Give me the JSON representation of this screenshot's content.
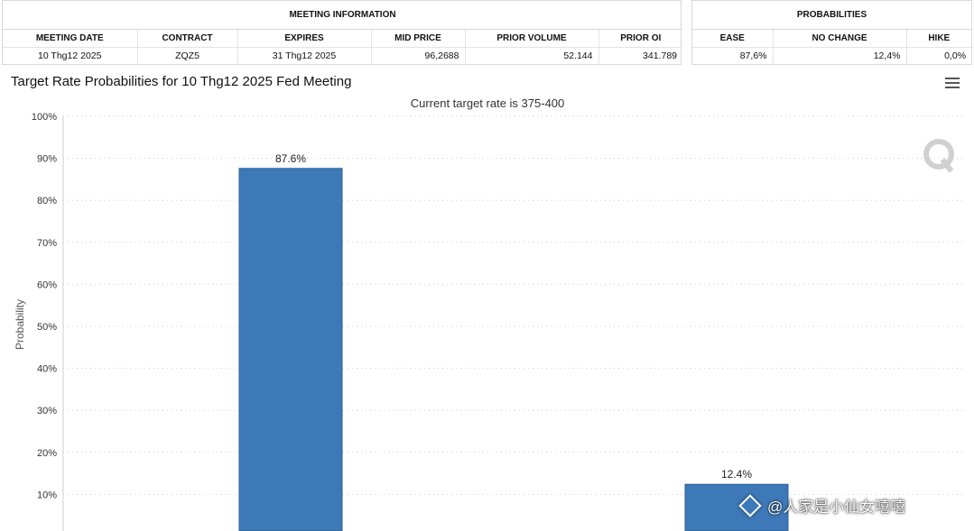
{
  "meeting_info": {
    "title": "MEETING INFORMATION",
    "headers": [
      "MEETING DATE",
      "CONTRACT",
      "EXPIRES",
      "MID PRICE",
      "PRIOR VOLUME",
      "PRIOR OI"
    ],
    "row": [
      "10 Thg12 2025",
      "ZQZ5",
      "31 Thg12 2025",
      "96,2688",
      "52.144",
      "341.789"
    ]
  },
  "probabilities": {
    "title": "PROBABILITIES",
    "headers": [
      "EASE",
      "NO CHANGE",
      "HIKE"
    ],
    "row": [
      "87,6%",
      "12,4%",
      "0,0%"
    ]
  },
  "watermark": {
    "text": "@人家是小仙女嘻嘻"
  },
  "chart_data": {
    "type": "bar",
    "title": "Target Rate Probabilities for 10 Thg12 2025 Fed Meeting",
    "subtitle": "Current target rate is 375-400",
    "xlabel": "",
    "ylabel": "Probability",
    "ylim": [
      0,
      100
    ],
    "grid": true,
    "yticks": [
      "100%",
      "90%",
      "80%",
      "70%",
      "60%",
      "50%",
      "40%",
      "30%",
      "20%",
      "10%"
    ],
    "bars": [
      {
        "value": 87.6,
        "label": "87.6%"
      },
      {
        "value": 12.4,
        "label": "12.4%"
      }
    ],
    "bar_color": "#3d79b8",
    "grid_color": "#cfcfcf"
  }
}
